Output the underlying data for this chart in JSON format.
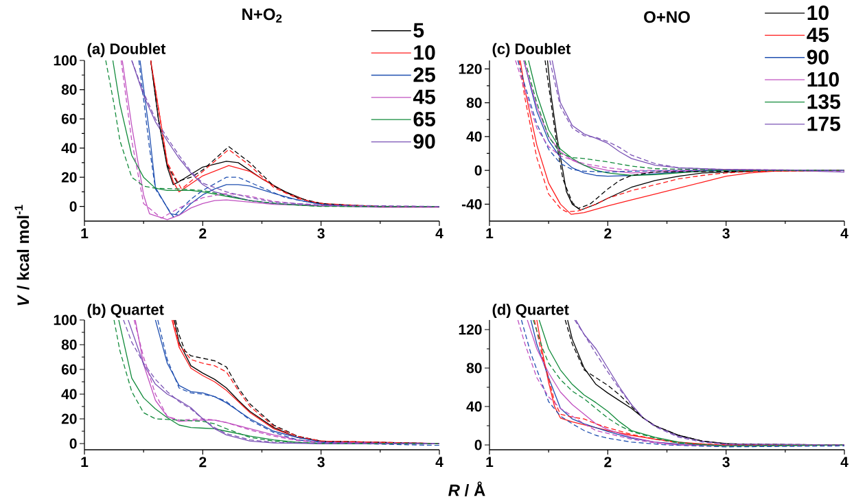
{
  "chart_data": [
    {
      "type": "line",
      "title": "N+O$_{2}$",
      "ylabel": "*V* / kcal mol$^{-1}$",
      "annotations": [
        "(a) Doublet"
      ],
      "xlim": [
        1,
        4
      ],
      "ylim": [
        -10,
        100
      ],
      "xticks": [
        1,
        2,
        3,
        4
      ],
      "yticks": [
        0,
        20,
        40,
        60,
        80,
        100
      ],
      "legend": "top right",
      "series": [
        {
          "name": "5",
          "color": "#000000",
          "line_style": "solid",
          "x": [
            1.56,
            1.625,
            1.7,
            1.75,
            1.8,
            1.9,
            2.0,
            2.2,
            2.3,
            2.5,
            2.7,
            2.9,
            3.1,
            3.5,
            4.0
          ],
          "values": [
            100,
            60,
            27,
            15,
            17,
            22,
            27,
            31,
            30,
            19,
            10,
            3.4,
            1,
            0,
            0
          ]
        },
        {
          "name": "10",
          "color": "#ff1a1a",
          "line_style": "solid",
          "x": [
            1.56,
            1.65,
            1.7,
            1.75,
            1.8,
            2.0,
            2.22,
            2.4,
            2.5,
            2.7,
            2.9,
            3.1,
            3.5,
            4.0
          ],
          "values": [
            100,
            55,
            30,
            17,
            10,
            21,
            28,
            24,
            19,
            9.5,
            3.4,
            1,
            0,
            0
          ]
        },
        {
          "name": "25",
          "color": "#1f4fb0",
          "line_style": "solid",
          "x": [
            1.47,
            1.55,
            1.6,
            1.73,
            1.8,
            1.9,
            2.0,
            2.1,
            2.2,
            2.3,
            2.4,
            2.6,
            2.8,
            3.0,
            3.3,
            4.0
          ],
          "values": [
            100,
            50,
            13,
            -5,
            -6,
            2,
            8,
            12,
            15,
            15,
            14,
            9,
            4.5,
            1.5,
            0,
            0
          ]
        },
        {
          "name": "45",
          "color": "#c050c0",
          "line_style": "solid",
          "x": [
            1.32,
            1.4,
            1.5,
            1.55,
            1.7,
            1.8,
            1.9,
            2.0,
            2.1,
            2.2,
            2.4,
            2.6,
            3.0,
            3.5,
            4.0
          ],
          "values": [
            100,
            55,
            8,
            -5,
            -9,
            -6,
            -1,
            2,
            4,
            4.5,
            3,
            1.5,
            0.5,
            -0.5,
            -0.5
          ]
        },
        {
          "name": "65",
          "color": "#118a3a",
          "line_style": "solid",
          "x": [
            1.24,
            1.3,
            1.4,
            1.5,
            1.6,
            1.7,
            1.9,
            2.0,
            2.2,
            2.4,
            2.6,
            2.9,
            3.2,
            4.0
          ],
          "values": [
            100,
            70,
            35,
            20,
            12.5,
            11,
            11,
            10,
            7,
            4,
            2,
            0.5,
            0,
            0
          ]
        },
        {
          "name": "90",
          "color": "#7a52b5",
          "line_style": "solid",
          "x": [
            1.4,
            1.5,
            1.6,
            1.7,
            1.8,
            1.9,
            2.0,
            2.1,
            2.2,
            2.4,
            2.6,
            3.0,
            3.5,
            4.0
          ],
          "values": [
            100,
            76,
            58,
            45,
            33,
            23,
            15,
            10,
            8,
            4,
            2,
            0.5,
            0,
            0
          ]
        },
        {
          "color": "#000000",
          "line_style": "dashed",
          "x": [
            1.56,
            1.625,
            1.7,
            1.78,
            1.9,
            2.0,
            2.22,
            2.4,
            2.6,
            2.8,
            3.0,
            3.5,
            4.0
          ],
          "values": [
            100,
            60,
            28,
            17,
            20,
            25,
            41,
            30,
            14,
            6,
            2,
            0,
            0
          ]
        },
        {
          "color": "#ff1a1a",
          "line_style": "dashed",
          "x": [
            1.56,
            1.65,
            1.7,
            1.82,
            2.0,
            2.22,
            2.4,
            2.6,
            2.8,
            3.0,
            3.5,
            4.0
          ],
          "values": [
            100,
            55,
            30,
            12,
            24,
            39,
            28,
            13,
            5.5,
            2,
            0,
            0
          ]
        },
        {
          "color": "#1f4fb0",
          "line_style": "dashed",
          "x": [
            1.46,
            1.55,
            1.6,
            1.75,
            1.9,
            2.0,
            2.2,
            2.3,
            2.5,
            2.7,
            3.0,
            3.3,
            4.0
          ],
          "values": [
            100,
            40,
            12,
            -7,
            5,
            11,
            20,
            20,
            13,
            6,
            1.5,
            0,
            0
          ]
        },
        {
          "color": "#c050c0",
          "line_style": "dashed",
          "x": [
            1.31,
            1.4,
            1.5,
            1.65,
            1.8,
            2.0,
            2.2,
            2.4,
            2.6,
            3.0,
            4.0
          ],
          "values": [
            100,
            45,
            2,
            -8,
            -1,
            6,
            9,
            7,
            3.5,
            0.5,
            0
          ]
        },
        {
          "color": "#118a3a",
          "line_style": "dashed",
          "x": [
            1.18,
            1.25,
            1.3,
            1.4,
            1.5,
            1.6,
            1.8,
            2.0,
            2.2,
            2.4,
            2.7,
            3.0,
            4.0
          ],
          "values": [
            100,
            70,
            45,
            20,
            14,
            12.5,
            12,
            11,
            7.5,
            4,
            1.5,
            0,
            0
          ]
        },
        {
          "color": "#7a52b5",
          "line_style": "dashed",
          "x": [
            1.4,
            1.5,
            1.6,
            1.7,
            1.8,
            1.9,
            2.0,
            2.2,
            2.4,
            2.6,
            3.0,
            4.0
          ],
          "values": [
            100,
            78,
            60,
            47,
            35,
            24,
            16,
            10,
            6,
            3,
            1,
            0
          ]
        }
      ]
    },
    {
      "type": "line",
      "xlabel": "*R* / Å",
      "annotations": [
        "(b) Quartet"
      ],
      "xlim": [
        1,
        4
      ],
      "ylim": [
        -5,
        100
      ],
      "xticks": [
        1,
        2,
        3,
        4
      ],
      "yticks": [
        0,
        20,
        40,
        60,
        80,
        100
      ],
      "series": [
        {
          "color": "#000000",
          "line_style": "solid",
          "x": [
            1.76,
            1.8,
            1.9,
            2.0,
            2.1,
            2.2,
            2.3,
            2.4,
            2.6,
            2.8,
            3.0,
            3.3,
            4.0
          ],
          "values": [
            100,
            82,
            63,
            57,
            52,
            45,
            35,
            26,
            13,
            5,
            2,
            0.5,
            0
          ]
        },
        {
          "color": "#ff1a1a",
          "line_style": "solid",
          "x": [
            1.74,
            1.8,
            1.9,
            2.0,
            2.1,
            2.2,
            2.3,
            2.4,
            2.6,
            2.8,
            3.0,
            4.0
          ],
          "values": [
            100,
            78,
            61,
            55,
            50,
            43,
            34,
            25,
            12,
            5,
            2,
            0
          ]
        },
        {
          "color": "#1f4fb0",
          "line_style": "solid",
          "x": [
            1.6,
            1.7,
            1.8,
            1.9,
            2.0,
            2.1,
            2.2,
            2.4,
            2.6,
            2.8,
            3.0,
            4.0
          ],
          "values": [
            100,
            65,
            47,
            42,
            41,
            38,
            33,
            20,
            10,
            5,
            1.5,
            0
          ]
        },
        {
          "color": "#c050c0",
          "line_style": "solid",
          "x": [
            1.43,
            1.5,
            1.6,
            1.7,
            1.8,
            1.9,
            2.0,
            2.1,
            2.2,
            2.4,
            2.6,
            2.8,
            3.0,
            4.0
          ],
          "values": [
            100,
            64,
            35,
            22,
            18,
            18.5,
            19,
            19,
            17,
            12,
            7,
            3,
            1,
            0
          ]
        },
        {
          "color": "#118a3a",
          "line_style": "solid",
          "x": [
            1.29,
            1.4,
            1.5,
            1.6,
            1.7,
            1.8,
            1.9,
            2.0,
            2.1,
            2.2,
            2.4,
            2.6,
            2.8,
            3.0,
            4.0
          ],
          "values": [
            100,
            53,
            37,
            28,
            21,
            15,
            13,
            12.5,
            12,
            10,
            6,
            3,
            1,
            0,
            0
          ]
        },
        {
          "color": "#7a52b5",
          "line_style": "solid",
          "x": [
            1.37,
            1.5,
            1.6,
            1.7,
            1.8,
            1.9,
            2.0,
            2.1,
            2.2,
            2.4,
            2.6,
            3.0,
            4.0
          ],
          "values": [
            100,
            64,
            48,
            40,
            35,
            29,
            20,
            12,
            7,
            2,
            0.5,
            0,
            0
          ]
        },
        {
          "color": "#000000",
          "line_style": "dashed",
          "x": [
            1.77,
            1.8,
            1.85,
            1.9,
            2.0,
            2.1,
            2.2,
            2.3,
            2.4,
            2.6,
            2.8,
            3.0,
            4.0
          ],
          "values": [
            100,
            88,
            75,
            71,
            69,
            67,
            62,
            45,
            32,
            15,
            6,
            2,
            0
          ]
        },
        {
          "color": "#ff1a1a",
          "line_style": "dashed",
          "x": [
            1.75,
            1.8,
            1.9,
            2.0,
            2.1,
            2.2,
            2.3,
            2.4,
            2.6,
            2.8,
            3.0,
            4.0
          ],
          "values": [
            100,
            80,
            68,
            65,
            63,
            58,
            43,
            30,
            14,
            6,
            2,
            0
          ]
        },
        {
          "color": "#1f4fb0",
          "line_style": "dashed",
          "x": [
            1.62,
            1.7,
            1.8,
            1.9,
            2.0,
            2.1,
            2.2,
            2.4,
            2.6,
            2.8,
            3.0,
            3.5,
            4.0
          ],
          "values": [
            100,
            68,
            45,
            41,
            40,
            38,
            34,
            19,
            9,
            3,
            1,
            -0.5,
            -1.5
          ]
        },
        {
          "color": "#c050c0",
          "line_style": "dashed",
          "x": [
            1.42,
            1.5,
            1.6,
            1.7,
            1.8,
            1.9,
            2.0,
            2.1,
            2.2,
            2.4,
            2.6,
            2.8,
            3.0,
            4.0
          ],
          "values": [
            100,
            70,
            40,
            22,
            19,
            19.5,
            20,
            19,
            17,
            11,
            6,
            2.5,
            0.5,
            0
          ]
        },
        {
          "color": "#118a3a",
          "line_style": "dashed",
          "x": [
            1.25,
            1.3,
            1.4,
            1.5,
            1.6,
            1.7,
            1.8,
            2.0,
            2.1,
            2.2,
            2.4,
            2.6,
            3.0,
            4.0
          ],
          "values": [
            100,
            75,
            42,
            25,
            20,
            19.5,
            19,
            18,
            16,
            12,
            5,
            2,
            0,
            0
          ]
        },
        {
          "color": "#7a52b5",
          "line_style": "dashed",
          "x": [
            1.33,
            1.4,
            1.5,
            1.6,
            1.7,
            1.8,
            1.9,
            2.0,
            2.1,
            2.2,
            2.4,
            2.6,
            3.0,
            4.0
          ],
          "values": [
            100,
            82,
            65,
            52,
            42,
            34,
            28,
            20,
            13,
            8,
            3,
            1,
            0,
            0
          ]
        }
      ]
    },
    {
      "type": "line",
      "title": "O+NO",
      "annotations": [
        "(c) Doublet"
      ],
      "xlim": [
        1,
        4
      ],
      "ylim": [
        -60,
        130
      ],
      "xticks": [
        1,
        2,
        3,
        4
      ],
      "yticks": [
        -40,
        0,
        40,
        80,
        120
      ],
      "legend": "top right",
      "series": [
        {
          "name": "10",
          "color": "#000000",
          "line_style": "solid",
          "x": [
            1.49,
            1.52,
            1.57,
            1.62,
            1.65,
            1.7,
            1.77,
            1.9,
            2.0,
            2.2,
            2.4,
            2.6,
            2.8,
            3.0,
            3.5,
            4.0
          ],
          "values": [
            130,
            90,
            40,
            0,
            -25,
            -40,
            -47,
            -40,
            -33,
            -20,
            -12,
            -7,
            -3,
            -2,
            0,
            0
          ]
        },
        {
          "name": "45",
          "color": "#ff1a1a",
          "line_style": "solid",
          "x": [
            1.26,
            1.3,
            1.4,
            1.5,
            1.6,
            1.69,
            1.8,
            2.0,
            2.2,
            2.4,
            2.6,
            2.8,
            3.0,
            3.2,
            3.4,
            4.0
          ],
          "values": [
            130,
            95,
            30,
            -15,
            -40,
            -52,
            -50,
            -42,
            -35,
            -28,
            -21,
            -14,
            -7,
            -3,
            -1,
            0
          ]
        },
        {
          "name": "90",
          "color": "#1f4fb0",
          "line_style": "solid",
          "x": [
            1.29,
            1.4,
            1.5,
            1.6,
            1.7,
            1.8,
            1.9,
            2.0,
            2.2,
            2.4,
            2.6,
            3.0,
            4.0
          ],
          "values": [
            130,
            70,
            35,
            15,
            3,
            -3,
            -6,
            -7,
            -6,
            -4,
            -2,
            0,
            0
          ]
        },
        {
          "name": "110",
          "color": "#c050c0",
          "line_style": "solid",
          "x": [
            1.29,
            1.4,
            1.5,
            1.6,
            1.7,
            1.8,
            2.0,
            2.2,
            2.4,
            2.8,
            3.0,
            4.0
          ],
          "values": [
            130,
            75,
            40,
            22,
            12,
            6,
            0,
            -3,
            -2,
            0,
            1,
            0
          ]
        },
        {
          "name": "135",
          "color": "#118a3a",
          "line_style": "solid",
          "x": [
            1.33,
            1.4,
            1.5,
            1.6,
            1.7,
            1.8,
            1.9,
            2.0,
            2.2,
            2.4,
            2.6,
            2.8,
            3.0,
            4.0
          ],
          "values": [
            130,
            90,
            48,
            25,
            14,
            6,
            0,
            -3,
            -6,
            -5,
            -3,
            -1,
            0,
            0
          ]
        },
        {
          "name": "175",
          "color": "#7a52b5",
          "line_style": "solid",
          "x": [
            1.53,
            1.6,
            1.7,
            1.8,
            1.9,
            2.0,
            2.1,
            2.2,
            2.4,
            2.6,
            2.8,
            3.0,
            3.5,
            4.0
          ],
          "values": [
            130,
            80,
            53,
            43,
            38,
            32,
            22,
            14,
            6,
            3,
            2,
            1,
            0,
            -2
          ]
        },
        {
          "color": "#000000",
          "line_style": "dashed",
          "x": [
            1.47,
            1.52,
            1.57,
            1.62,
            1.7,
            1.75,
            1.85,
            2.0,
            2.1,
            2.2,
            2.4,
            3.0,
            4.0
          ],
          "values": [
            130,
            80,
            30,
            -10,
            -38,
            -45,
            -40,
            -22,
            -12,
            -6,
            -2,
            -1,
            0
          ]
        },
        {
          "color": "#ff1a1a",
          "line_style": "dashed",
          "x": [
            1.25,
            1.3,
            1.4,
            1.5,
            1.6,
            1.65,
            1.75,
            1.9,
            2.0,
            2.2,
            2.4,
            2.6,
            2.8,
            3.0,
            3.3,
            4.0
          ],
          "values": [
            130,
            85,
            15,
            -28,
            -45,
            -49,
            -48,
            -40,
            -33,
            -24,
            -17,
            -10,
            -6,
            -3,
            -1,
            0
          ]
        },
        {
          "color": "#1f4fb0",
          "line_style": "dashed",
          "x": [
            1.24,
            1.3,
            1.4,
            1.5,
            1.6,
            1.7,
            1.8,
            2.0,
            2.2,
            2.6,
            4.0
          ],
          "values": [
            130,
            100,
            55,
            25,
            8,
            1,
            -1,
            -2,
            -1,
            0,
            0
          ]
        },
        {
          "color": "#c050c0",
          "line_style": "dashed",
          "x": [
            1.22,
            1.3,
            1.4,
            1.5,
            1.6,
            1.8,
            2.0,
            2.2,
            2.5,
            3.0,
            4.0
          ],
          "values": [
            130,
            95,
            50,
            28,
            17,
            8,
            3,
            0,
            0,
            1,
            -1
          ]
        },
        {
          "color": "#118a3a",
          "line_style": "dashed",
          "x": [
            1.3,
            1.4,
            1.5,
            1.6,
            1.7,
            1.8,
            1.9,
            2.0,
            2.2,
            2.4,
            2.8,
            3.0,
            4.0
          ],
          "values": [
            130,
            80,
            40,
            20,
            15,
            14,
            12,
            10,
            5,
            2,
            1,
            0,
            0
          ]
        },
        {
          "color": "#7a52b5",
          "line_style": "dashed",
          "x": [
            1.51,
            1.6,
            1.7,
            1.8,
            1.9,
            2.0,
            2.1,
            2.2,
            2.4,
            2.6,
            3.0,
            4.0
          ],
          "values": [
            130,
            75,
            50,
            41,
            39,
            34,
            27,
            18,
            8,
            3,
            1,
            0
          ]
        }
      ]
    },
    {
      "type": "line",
      "annotations": [
        "(d) Quartet"
      ],
      "xlim": [
        1,
        4
      ],
      "ylim": [
        -5,
        130
      ],
      "xticks": [
        1,
        2,
        3,
        4
      ],
      "yticks": [
        0,
        40,
        80,
        120
      ],
      "series": [
        {
          "color": "#000000",
          "line_style": "solid",
          "x": [
            1.66,
            1.7,
            1.8,
            1.9,
            2.0,
            2.1,
            2.2,
            2.3,
            2.4,
            2.6,
            2.8,
            3.0,
            3.3,
            4.0
          ],
          "values": [
            130,
            110,
            80,
            63,
            54,
            46,
            38,
            28,
            20,
            10,
            4,
            1.5,
            0,
            0
          ]
        },
        {
          "color": "#ff1a1a",
          "line_style": "solid",
          "x": [
            1.4,
            1.45,
            1.5,
            1.55,
            1.6,
            1.7,
            1.8,
            1.9,
            2.0,
            2.2,
            2.4,
            2.6,
            2.8,
            3.0,
            4.0
          ],
          "values": [
            130,
            95,
            65,
            40,
            28,
            24,
            21,
            18,
            15,
            10,
            6,
            3,
            1,
            0,
            0
          ]
        },
        {
          "color": "#1f4fb0",
          "line_style": "solid",
          "x": [
            1.35,
            1.4,
            1.5,
            1.6,
            1.7,
            1.8,
            1.9,
            2.0,
            2.2,
            2.4,
            2.6,
            3.0,
            4.0
          ],
          "values": [
            130,
            105,
            70,
            38,
            27,
            22,
            18,
            14,
            7,
            3,
            1,
            -1,
            0
          ]
        },
        {
          "color": "#c050c0",
          "line_style": "solid",
          "x": [
            1.32,
            1.4,
            1.5,
            1.6,
            1.7,
            1.8,
            1.9,
            2.0,
            2.2,
            2.4,
            2.6,
            3.0,
            4.0
          ],
          "values": [
            130,
            100,
            75,
            55,
            42,
            32,
            22,
            16,
            8,
            3,
            0,
            -1,
            0
          ]
        },
        {
          "color": "#118a3a",
          "line_style": "solid",
          "x": [
            1.42,
            1.5,
            1.6,
            1.7,
            1.8,
            1.9,
            2.0,
            2.1,
            2.2,
            2.4,
            2.6,
            2.8,
            3.0,
            4.0
          ],
          "values": [
            130,
            100,
            78,
            63,
            52,
            44,
            35,
            24,
            15,
            8,
            3,
            0,
            -1,
            0
          ]
        },
        {
          "color": "#7a52b5",
          "line_style": "solid",
          "x": [
            1.73,
            1.8,
            1.9,
            2.0,
            2.1,
            2.2,
            2.3,
            2.4,
            2.6,
            2.8,
            3.0,
            4.0
          ],
          "values": [
            130,
            115,
            100,
            80,
            60,
            42,
            28,
            20,
            9,
            4,
            1,
            0
          ]
        },
        {
          "color": "#000000",
          "line_style": "dashed",
          "x": [
            1.64,
            1.7,
            1.8,
            1.9,
            2.0,
            2.1,
            2.2,
            2.3,
            2.4,
            2.6,
            2.8,
            3.0,
            4.0
          ],
          "values": [
            130,
            105,
            78,
            70,
            62,
            52,
            40,
            28,
            20,
            10,
            4,
            1,
            0
          ]
        },
        {
          "color": "#ff1a1a",
          "line_style": "dashed",
          "x": [
            1.38,
            1.45,
            1.5,
            1.55,
            1.6,
            1.7,
            1.8,
            1.9,
            2.0,
            2.2,
            2.4,
            2.6,
            3.0,
            4.0
          ],
          "values": [
            130,
            90,
            70,
            45,
            32,
            29,
            27,
            22,
            18,
            11,
            6,
            2,
            0,
            0
          ]
        },
        {
          "color": "#1f4fb0",
          "line_style": "dashed",
          "x": [
            1.27,
            1.35,
            1.45,
            1.5,
            1.6,
            1.7,
            1.8,
            1.9,
            2.0,
            2.2,
            2.5,
            3.0,
            4.0
          ],
          "values": [
            130,
            95,
            62,
            45,
            30,
            22,
            15,
            10,
            7,
            3,
            0,
            -2,
            -1
          ]
        },
        {
          "color": "#c050c0",
          "line_style": "dashed",
          "x": [
            1.24,
            1.3,
            1.4,
            1.5,
            1.6,
            1.7,
            1.8,
            1.9,
            2.0,
            2.2,
            2.4,
            2.6,
            4.0
          ],
          "values": [
            130,
            105,
            70,
            50,
            38,
            30,
            22,
            15,
            12,
            6,
            2,
            0,
            0
          ]
        },
        {
          "color": "#118a3a",
          "line_style": "dashed",
          "x": [
            1.37,
            1.45,
            1.5,
            1.6,
            1.7,
            1.8,
            1.9,
            2.0,
            2.1,
            2.2,
            2.4,
            2.6,
            3.0,
            4.0
          ],
          "values": [
            130,
            100,
            85,
            68,
            56,
            48,
            38,
            28,
            20,
            14,
            7,
            2,
            -1,
            0
          ]
        },
        {
          "color": "#7a52b5",
          "line_style": "dashed",
          "x": [
            1.72,
            1.8,
            1.9,
            2.0,
            2.1,
            2.2,
            2.3,
            2.4,
            2.6,
            2.8,
            3.0,
            4.0
          ],
          "values": [
            130,
            115,
            95,
            76,
            58,
            42,
            28,
            19,
            8,
            3,
            1,
            0
          ]
        }
      ]
    }
  ]
}
